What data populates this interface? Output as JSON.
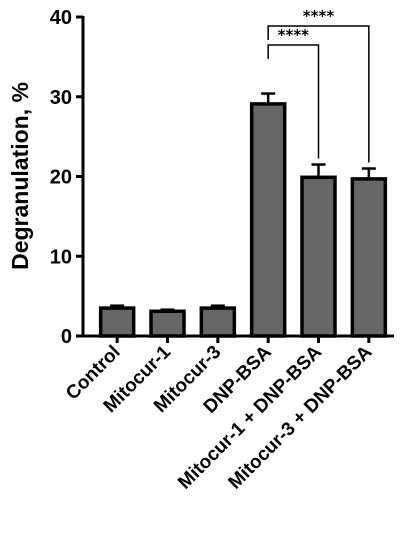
{
  "chart_data": {
    "type": "bar",
    "categories": [
      "Control",
      "Mitocur-1",
      "Mitocur-3",
      "DNP-BSA",
      "Mitocur-1 + DNP-BSA",
      "Mitocur-3 + DNP-BSA"
    ],
    "values": [
      3.5,
      3.1,
      3.5,
      29.1,
      19.9,
      19.7
    ],
    "errors": [
      0.3,
      0.2,
      0.3,
      1.3,
      1.6,
      1.3
    ],
    "title": "",
    "xlabel": "",
    "ylabel": "Degranulation, %",
    "ylim": [
      0,
      40
    ],
    "yticks": [
      0,
      10,
      20,
      30,
      40
    ],
    "grid": false,
    "bar_color": "#666666",
    "significance": [
      {
        "from": 3,
        "to": 4,
        "label": "****"
      },
      {
        "from": 3,
        "to": 5,
        "label": "****"
      }
    ]
  }
}
